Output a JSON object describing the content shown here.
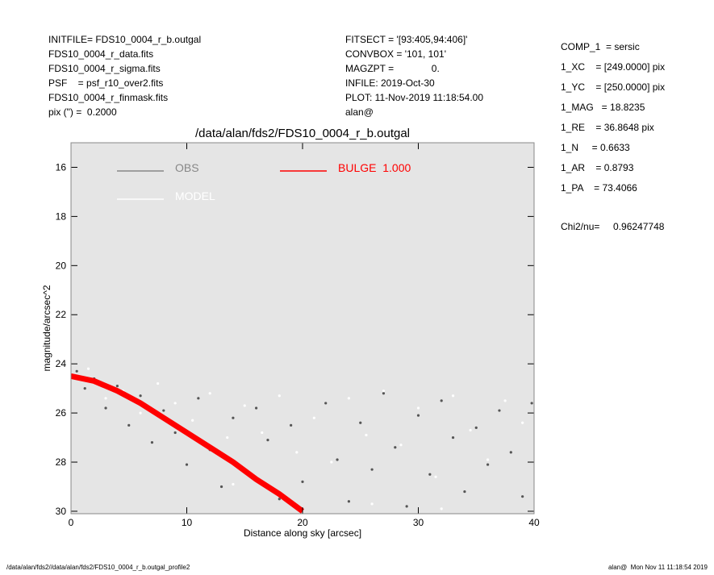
{
  "header": {
    "left": [
      "INITFILE= FDS10_0004_r_b.outgal",
      "FDS10_0004_r_data.fits",
      "FDS10_0004_r_sigma.fits",
      "PSF    = psf_r10_over2.fits",
      "FDS10_0004_r_finmask.fits",
      "pix (\") =  0.2000"
    ],
    "middle": [
      "FITSECT = '[93:405,94:406]'",
      "CONVBOX = '101, 101'",
      "MAGZPT =              0.",
      "INFILE: 2019-Oct-30",
      "PLOT: 11-Nov-2019 11:18:54.00",
      "alan@"
    ],
    "right": [
      "COMP_1  = sersic",
      "1_XC    = [249.0000] pix",
      "1_YC    = [250.0000] pix",
      "1_MAG   = 18.8235",
      "1_RE    = 36.8648 pix",
      "1_N     = 0.6633",
      "1_AR    = 0.8793",
      "1_PA    = 73.4066"
    ],
    "chi2": "Chi2/nu=     0.96247748"
  },
  "footer": {
    "left": "/data/alan/fds2//data/alan/fds2/FDS10_0004_r_b.outgal_profile2",
    "right": "alan@  Mon Nov 11 11:18:54 2019"
  },
  "chart_data": {
    "type": "scatter",
    "title": "/data/alan/fds2/FDS10_0004_r_b.outgal",
    "xlabel": "Distance along sky [arcsec]",
    "ylabel": "magnitude/arcsec^2",
    "xlim": [
      0,
      40
    ],
    "ylim": [
      30.1,
      15.0
    ],
    "xticks": [
      0,
      10,
      20,
      30,
      40
    ],
    "yticks": [
      16,
      18,
      20,
      22,
      24,
      26,
      28,
      30
    ],
    "background": "#e5e5e5",
    "series": [
      {
        "name": "OBS",
        "color": "#555555",
        "style": "markers",
        "x": [
          0.5,
          1.2,
          2,
          3,
          4,
          5,
          6,
          7,
          8,
          9,
          10,
          11,
          12,
          13,
          14,
          15,
          16,
          17,
          18,
          19,
          20,
          22,
          23,
          24,
          25,
          26,
          27,
          28,
          29,
          30,
          31,
          32,
          33,
          34,
          35,
          36,
          37,
          38,
          39,
          39.8
        ],
        "y": [
          24.3,
          25.0,
          24.6,
          25.8,
          24.9,
          26.5,
          25.3,
          27.2,
          25.9,
          26.8,
          28.1,
          25.4,
          27.5,
          29.0,
          26.2,
          28.4,
          25.8,
          27.1,
          29.5,
          26.5,
          28.8,
          25.6,
          27.9,
          29.6,
          26.4,
          28.3,
          25.2,
          27.4,
          29.8,
          26.1,
          28.5,
          25.5,
          27.0,
          29.2,
          26.6,
          28.1,
          25.9,
          27.6,
          29.4,
          25.6
        ]
      },
      {
        "name": "MODEL",
        "color": "#ffffff",
        "style": "markers",
        "x": [
          0.8,
          1.5,
          3,
          4.5,
          6,
          7.5,
          9,
          10.5,
          12,
          13.5,
          15,
          16.5,
          18,
          19.5,
          21,
          22.5,
          24,
          25.5,
          27,
          28.5,
          30,
          31.5,
          33,
          34.5,
          36,
          37.5,
          39,
          26,
          14,
          32
        ],
        "y": [
          24.6,
          24.2,
          25.4,
          25.1,
          26.0,
          24.8,
          25.6,
          26.3,
          25.2,
          27.0,
          25.7,
          26.8,
          25.3,
          27.6,
          26.2,
          28.0,
          25.4,
          26.9,
          25.1,
          27.3,
          25.8,
          28.6,
          25.3,
          26.7,
          27.9,
          25.5,
          26.4,
          29.7,
          28.9,
          29.9
        ]
      },
      {
        "name": "BULGE  1.000",
        "color": "#ff0000",
        "style": "line",
        "x": [
          0,
          2,
          4,
          6,
          8,
          10,
          12,
          14,
          16,
          18,
          20
        ],
        "y": [
          24.5,
          24.7,
          25.1,
          25.6,
          26.2,
          26.8,
          27.4,
          28.0,
          28.7,
          29.3,
          30.0
        ]
      }
    ]
  }
}
